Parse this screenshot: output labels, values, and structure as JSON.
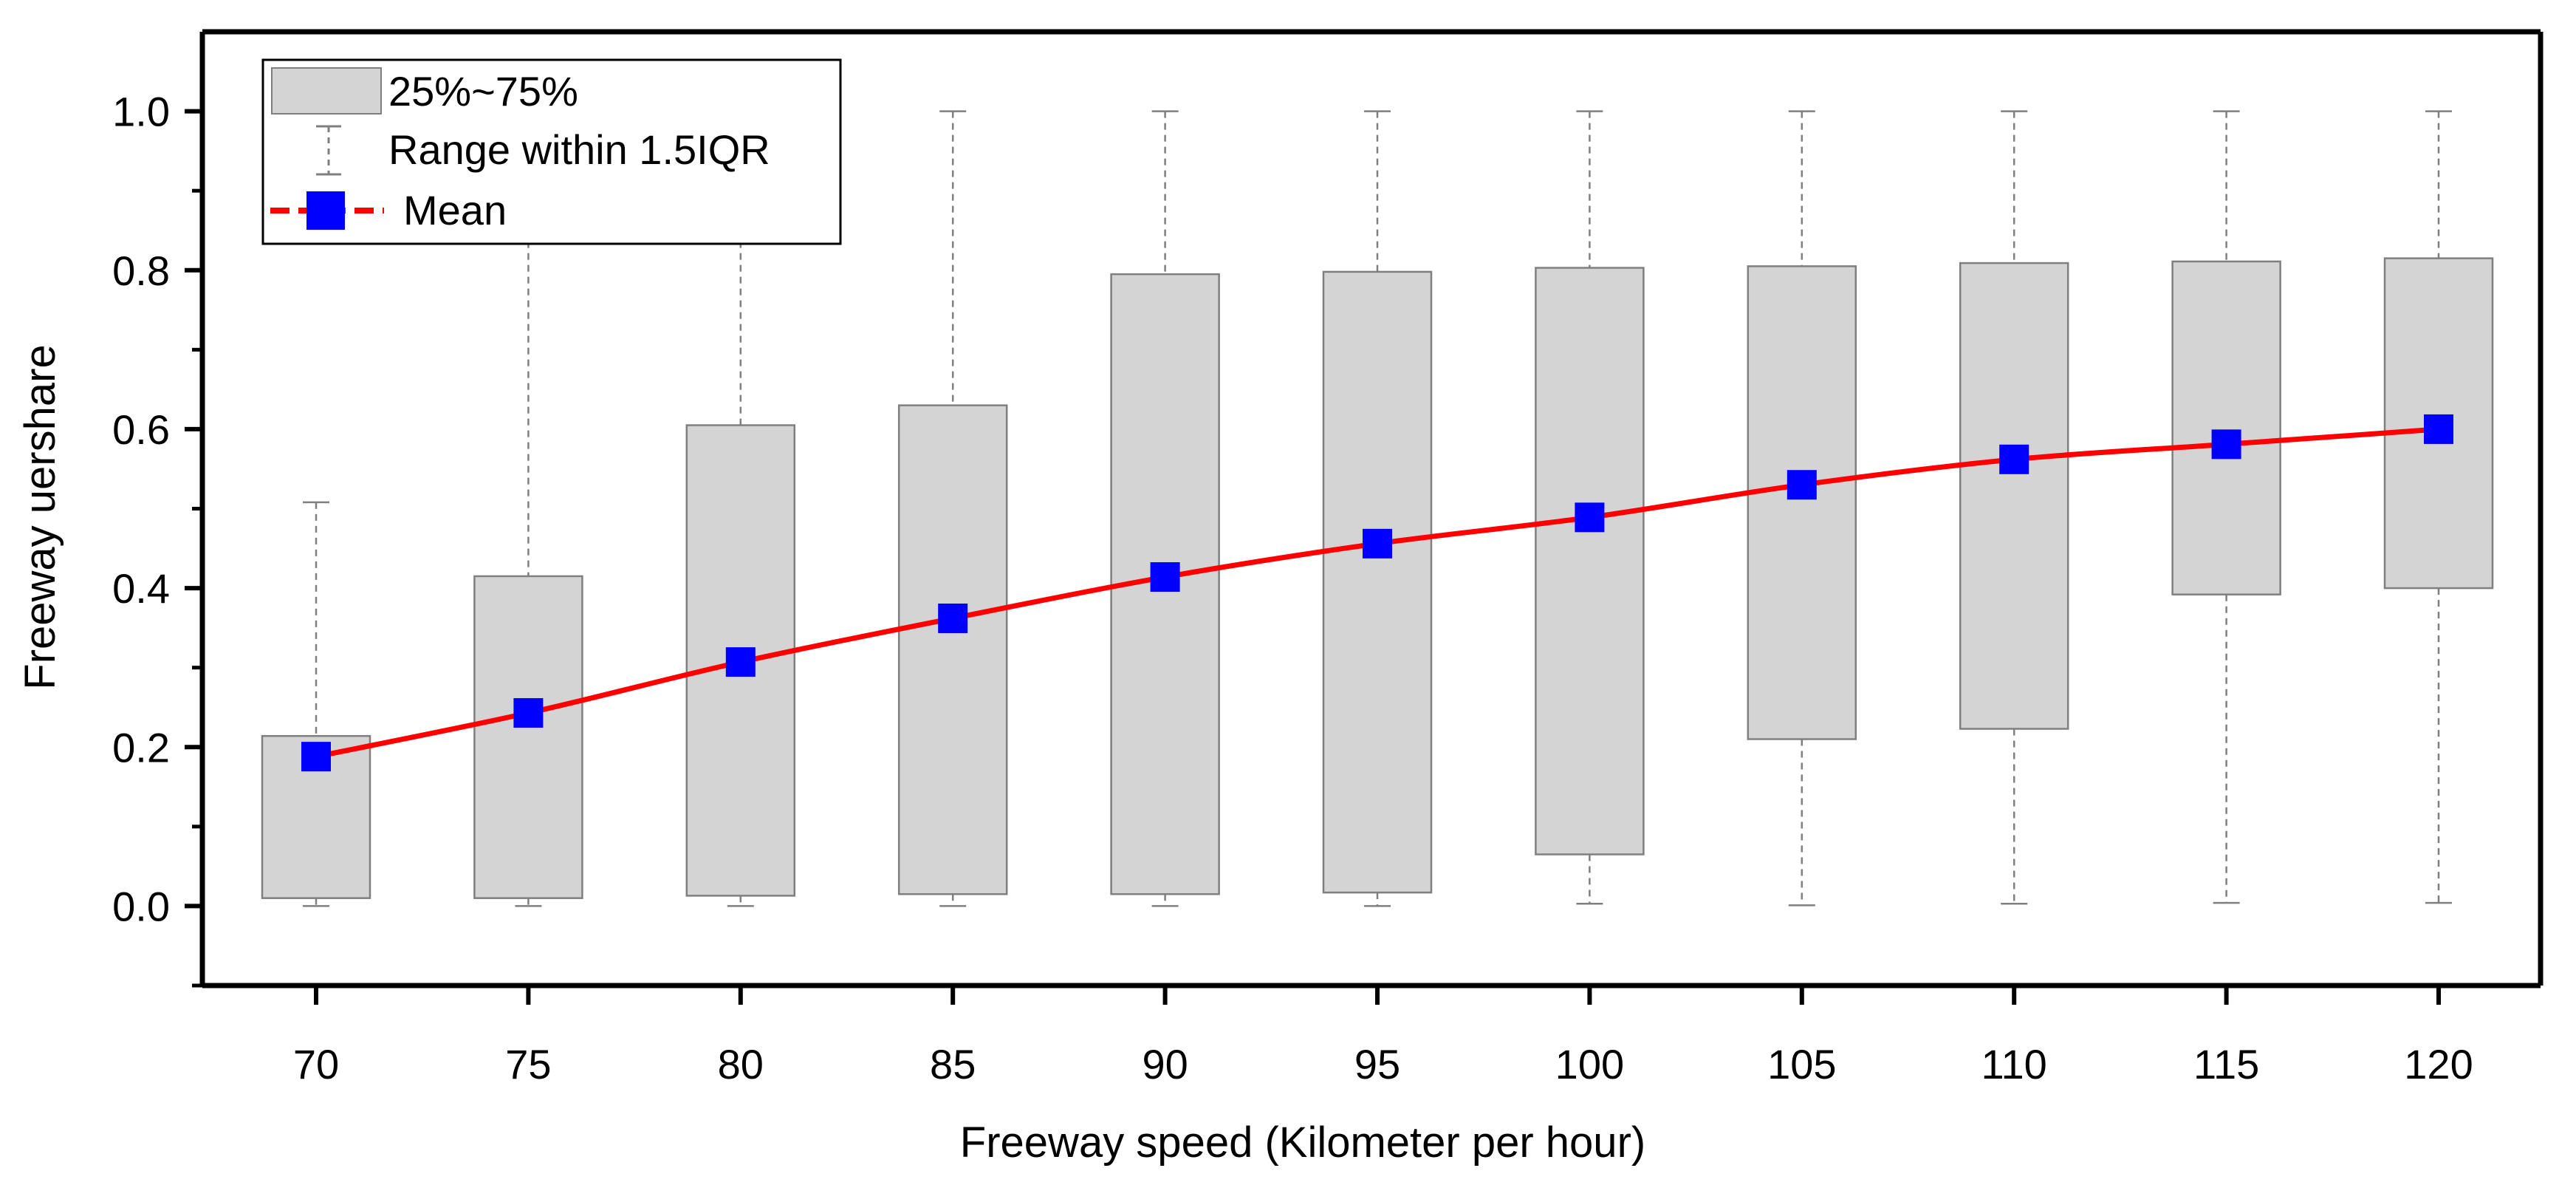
{
  "chart_data": {
    "type": "box",
    "title": "",
    "xlabel": "Freeway speed (Kilometer per hour)",
    "ylabel": "Freeway uershare",
    "ylim": [
      -0.1,
      1.1
    ],
    "yticks": [
      "0.0",
      "0.2",
      "0.4",
      "0.6",
      "0.8",
      "1.0"
    ],
    "categories": [
      "70",
      "75",
      "80",
      "85",
      "90",
      "95",
      "100",
      "105",
      "110",
      "115",
      "120"
    ],
    "boxes": [
      {
        "q1": 0.01,
        "q3": 0.214,
        "whisker_low": 0.0,
        "whisker_high": 0.508,
        "mean": 0.188
      },
      {
        "q1": 0.01,
        "q3": 0.415,
        "whisker_low": 0.0,
        "whisker_high": 1.0,
        "mean": 0.243
      },
      {
        "q1": 0.013,
        "q3": 0.605,
        "whisker_low": 0.0,
        "whisker_high": 1.0,
        "mean": 0.307
      },
      {
        "q1": 0.015,
        "q3": 0.63,
        "whisker_low": 0.0,
        "whisker_high": 1.0,
        "mean": 0.362
      },
      {
        "q1": 0.015,
        "q3": 0.795,
        "whisker_low": 0.0,
        "whisker_high": 1.0,
        "mean": 0.414
      },
      {
        "q1": 0.017,
        "q3": 0.798,
        "whisker_low": 0.0,
        "whisker_high": 1.0,
        "mean": 0.456
      },
      {
        "q1": 0.065,
        "q3": 0.803,
        "whisker_low": 0.003,
        "whisker_high": 1.0,
        "mean": 0.489
      },
      {
        "q1": 0.21,
        "q3": 0.805,
        "whisker_low": 0.001,
        "whisker_high": 1.0,
        "mean": 0.53
      },
      {
        "q1": 0.223,
        "q3": 0.809,
        "whisker_low": 0.003,
        "whisker_high": 1.0,
        "mean": 0.562
      },
      {
        "q1": 0.392,
        "q3": 0.811,
        "whisker_low": 0.004,
        "whisker_high": 1.0,
        "mean": 0.581
      },
      {
        "q1": 0.4,
        "q3": 0.815,
        "whisker_low": 0.004,
        "whisker_high": 1.0,
        "mean": 0.6
      }
    ],
    "legend": {
      "placement": "top-left",
      "entries": [
        "25%~75%",
        "Range within 1.5IQR",
        "Mean"
      ]
    },
    "colors": {
      "box_fill": "#d4d4d4",
      "box_stroke": "#7f7f7f",
      "whisker": "#7f7f7f",
      "mean_line": "#ff0000",
      "mean_marker": "#0000ff",
      "axis": "#000000"
    },
    "grid": false
  }
}
